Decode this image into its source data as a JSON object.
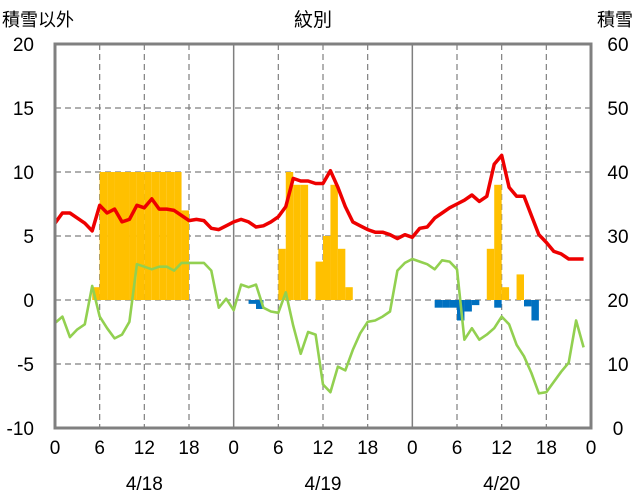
{
  "chart_data": {
    "type": "line",
    "title": "紋別",
    "y_left_label": "積雪以外",
    "y_right_label": "積雪",
    "y_left_ticks": [
      "20",
      "15",
      "10",
      "5",
      "0",
      "-5",
      "-10"
    ],
    "y_right_ticks": [
      "60",
      "50",
      "40",
      "30",
      "20",
      "10",
      "0"
    ],
    "ylim_left": [
      -10,
      20
    ],
    "ylim_right": [
      0,
      60
    ],
    "xlim_hours": [
      0,
      72
    ],
    "x_ticks": [
      "0",
      "6",
      "12",
      "18",
      "0",
      "6",
      "12",
      "18",
      "0",
      "6",
      "12",
      "18",
      "0"
    ],
    "day_labels": [
      "4/18",
      "4/19",
      "4/20"
    ],
    "colors": {
      "temperature": "#ee0000",
      "dewpoint": "#92d050",
      "precip": "#ffc000",
      "negative": "#0070c0",
      "snow_depth": "#7030a0",
      "grid": "#7f7f7f",
      "frame": "#808080"
    },
    "series": [
      {
        "kind": "bar",
        "axis": "left",
        "color": "#ffc000",
        "x": [
          5.5,
          6.5,
          7.5,
          8.5,
          9.5,
          10.5,
          11.5,
          12.5,
          13.5,
          14.5,
          15.5,
          16.5,
          17.5,
          30.5,
          31.5,
          32.5,
          33.5,
          35.5,
          36.5,
          37.5,
          38.5,
          39.5,
          58.5,
          59.5,
          60.5,
          62.5
        ],
        "values": [
          1,
          10,
          10,
          10,
          10,
          10,
          10,
          10,
          10,
          10,
          10,
          10,
          7,
          4,
          10,
          9,
          9,
          3,
          5,
          9,
          4,
          1,
          4,
          9,
          1,
          2
        ]
      },
      {
        "kind": "bar",
        "axis": "left",
        "color": "#0070c0",
        "x": [
          26.5,
          27.5,
          51.5,
          52.5,
          53.5,
          54.5,
          55.5,
          56.5,
          59.5,
          63.5,
          64.5
        ],
        "values": [
          -0.3,
          -0.7,
          -0.6,
          -0.6,
          -0.6,
          -1.6,
          -0.9,
          -0.4,
          -0.6,
          -0.5,
          -1.6
        ]
      },
      {
        "kind": "line",
        "axis": "left",
        "color": "#ee0000",
        "x": [
          0,
          1,
          2,
          3,
          4,
          5,
          6,
          7,
          8,
          9,
          10,
          11,
          12,
          13,
          14,
          15,
          16,
          17,
          18,
          19,
          20,
          21,
          22,
          23,
          24,
          25,
          26,
          27,
          28,
          29,
          30,
          31,
          32,
          33,
          34,
          35,
          36,
          37,
          38,
          39,
          40,
          41,
          42,
          43,
          44,
          45,
          46,
          47,
          48,
          49,
          50,
          51,
          52,
          53,
          54,
          55,
          56,
          57,
          58,
          59,
          60,
          61,
          62,
          63,
          64,
          65,
          66,
          67,
          68,
          69,
          70,
          71
        ],
        "y": [
          6,
          6.8,
          6.8,
          6.4,
          6,
          5.4,
          7.4,
          6.8,
          7.1,
          6.1,
          6.3,
          7.4,
          7.2,
          7.9,
          7.1,
          7.1,
          7,
          6.6,
          6.2,
          6.3,
          6.2,
          5.6,
          5.5,
          5.8,
          6.1,
          6.3,
          6.1,
          5.7,
          5.8,
          6.1,
          6.5,
          7.3,
          9.5,
          9.3,
          9.3,
          9.1,
          9.1,
          10.1,
          8.8,
          7.3,
          6.1,
          5.8,
          5.5,
          5.3,
          5.3,
          5.1,
          4.8,
          5.1,
          4.9,
          5.6,
          5.7,
          6.4,
          6.8,
          7.2,
          7.5,
          7.8,
          8.2,
          7.7,
          8.1,
          10.6,
          11.3,
          8.8,
          8.1,
          8.1,
          6.6,
          5.1,
          4.5,
          3.8,
          3.6,
          3.2,
          3.2,
          3.2
        ]
      },
      {
        "kind": "line",
        "axis": "left",
        "color": "#92d050",
        "x": [
          0,
          1,
          2,
          3,
          4,
          5,
          6,
          7,
          8,
          9,
          10,
          11,
          12,
          13,
          14,
          15,
          16,
          17,
          18,
          19,
          20,
          21,
          22,
          23,
          24,
          25,
          26,
          27,
          28,
          29,
          30,
          31,
          32,
          33,
          34,
          35,
          36,
          37,
          38,
          39,
          40,
          41,
          42,
          43,
          44,
          45,
          46,
          47,
          48,
          49,
          50,
          51,
          52,
          53,
          54,
          55,
          56,
          57,
          58,
          59,
          60,
          61,
          62,
          63,
          64,
          65,
          66,
          67,
          68,
          69,
          70,
          71
        ],
        "y": [
          -1.8,
          -1.3,
          -2.9,
          -2.3,
          -1.9,
          1.1,
          -1.3,
          -2.2,
          -3,
          -2.7,
          -1.7,
          2.8,
          2.6,
          2.4,
          2.6,
          2.6,
          2.3,
          2.9,
          2.9,
          2.9,
          2.9,
          2.3,
          -0.6,
          0.1,
          -0.8,
          1.2,
          1,
          1.2,
          -0.6,
          -0.9,
          -1,
          0.6,
          -2,
          -4.2,
          -2.5,
          -2.7,
          -6.6,
          -7.2,
          -5.2,
          -5.5,
          -3.9,
          -2.6,
          -1.7,
          -1.6,
          -1.3,
          -0.9,
          2.3,
          2.9,
          3.2,
          3,
          2.8,
          2.4,
          3.1,
          3,
          2.4,
          -3.1,
          -2.2,
          -3.1,
          -2.7,
          -2.2,
          -1.3,
          -1.9,
          -3.5,
          -4.4,
          -5.7,
          -7.3,
          -7.2,
          -6.4,
          -5.6,
          -4.9,
          -1.6,
          -3.7
        ]
      },
      {
        "kind": "line",
        "axis": "right",
        "color": "#7030a0",
        "x": [
          0,
          72
        ],
        "y": [
          0,
          0
        ]
      }
    ]
  }
}
